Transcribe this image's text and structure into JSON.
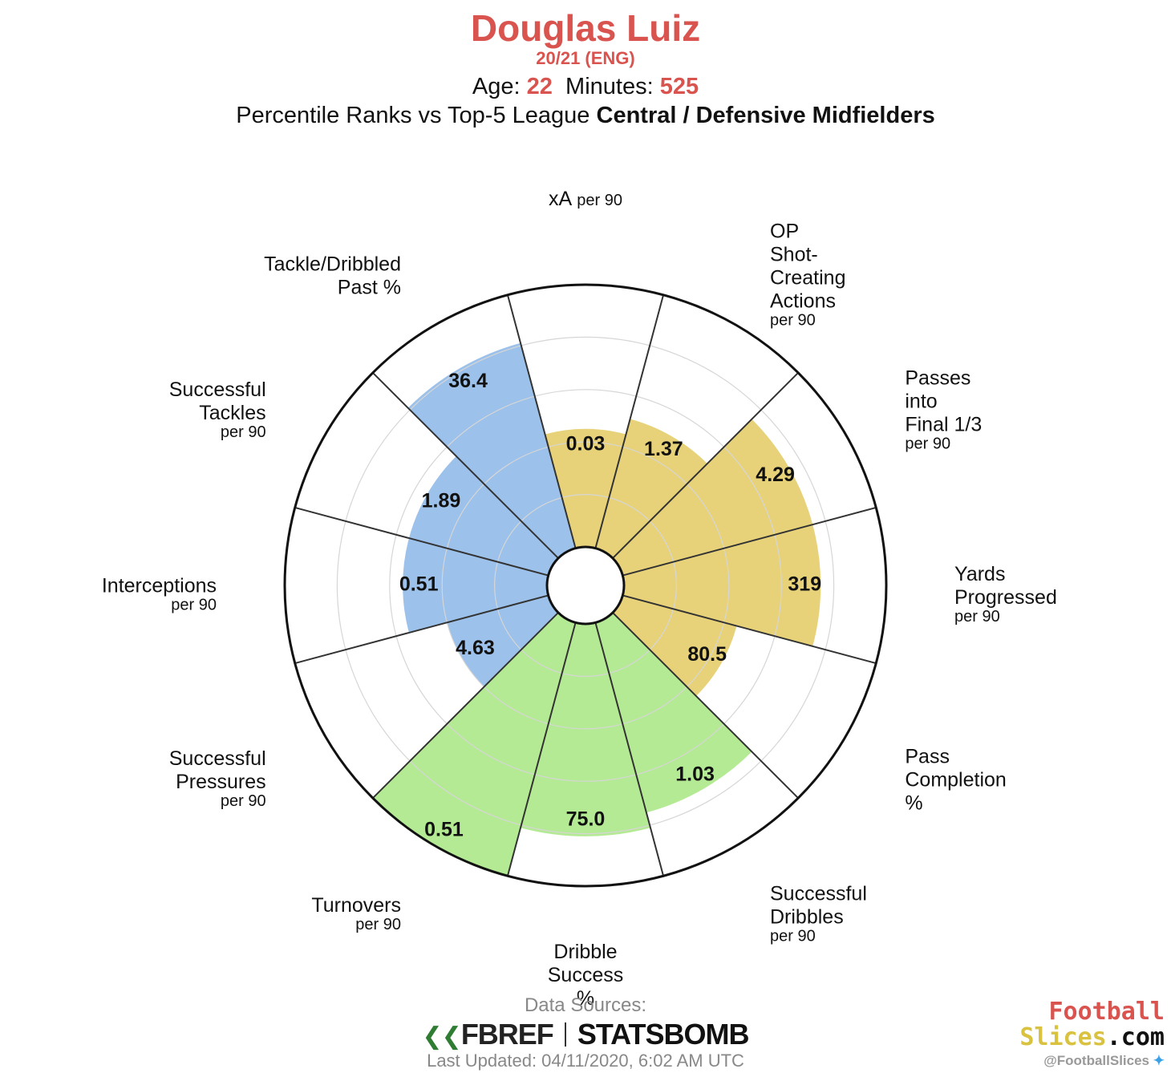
{
  "header": {
    "player": "Douglas Luiz",
    "season": "20/21 (ENG)",
    "age_label": "Age:",
    "age": "22",
    "minutes_label": "Minutes:",
    "minutes": "525",
    "comparison_prefix": "Percentile Ranks vs Top-5 League",
    "comparison_group": "Central / Defensive Midfielders"
  },
  "colors": {
    "defense": "#9cc1ea",
    "attack": "#e7d27a",
    "possession": "#b4ea94",
    "accent": "#d9534f"
  },
  "chart_data": {
    "type": "polar-bar",
    "title": "Douglas Luiz",
    "subtitle": "20/21 (ENG)",
    "rlim": [
      0,
      100
    ],
    "grid": true,
    "categories": [
      {
        "lines": [
          "xA"
        ],
        "sub": "per 90",
        "value_label": "0.03",
        "percentile": 45,
        "group": "attack"
      },
      {
        "lines": [
          "OP",
          "Shot-",
          "Creating",
          "Actions"
        ],
        "sub": "per 90",
        "value_label": "1.37",
        "percentile": 51,
        "group": "attack"
      },
      {
        "lines": [
          "Passes",
          "into",
          "Final 1/3"
        ],
        "sub": "per 90",
        "value_label": "4.29",
        "percentile": 75,
        "group": "attack"
      },
      {
        "lines": [
          "Yards",
          "Progressed"
        ],
        "sub": "per 90",
        "value_label": "319",
        "percentile": 75,
        "group": "attack"
      },
      {
        "lines": [
          "Pass",
          "Completion",
          "%"
        ],
        "sub": "",
        "value_label": "80.5",
        "percentile": 45,
        "group": "attack"
      },
      {
        "lines": [
          "Successful",
          "Dribbles"
        ],
        "sub": "per 90",
        "value_label": "1.03",
        "percentile": 75,
        "group": "possession"
      },
      {
        "lines": [
          "Dribble",
          "Success",
          "%"
        ],
        "sub": "",
        "value_label": "75.0",
        "percentile": 81,
        "group": "possession"
      },
      {
        "lines": [
          "Turnovers"
        ],
        "sub": "per 90",
        "value_label": "0.51",
        "percentile": 100,
        "group": "possession"
      },
      {
        "lines": [
          "Successful",
          "Pressures"
        ],
        "sub": "per 90",
        "value_label": "4.63",
        "percentile": 40,
        "group": "defense"
      },
      {
        "lines": [
          "Interceptions"
        ],
        "sub": "per 90",
        "value_label": "0.51",
        "percentile": 55,
        "group": "defense"
      },
      {
        "lines": [
          "Successful",
          "Tackles"
        ],
        "sub": "per 90",
        "value_label": "1.89",
        "percentile": 55,
        "group": "defense"
      },
      {
        "lines": [
          "Tackle/Dribbled",
          "Past %"
        ],
        "sub": "",
        "value_label": "36.4",
        "percentile": 81,
        "group": "defense"
      }
    ]
  },
  "footer": {
    "sources_label": "Data Sources:",
    "fbref": "FBREF",
    "statsbomb": "STATSBOMB",
    "updated": "Last Updated: 04/11/2020, 6:02 AM UTC"
  },
  "brand": {
    "line1": "Football",
    "line2a": "Slices",
    "line2b": ".com",
    "handle": "@FootballSlices"
  }
}
